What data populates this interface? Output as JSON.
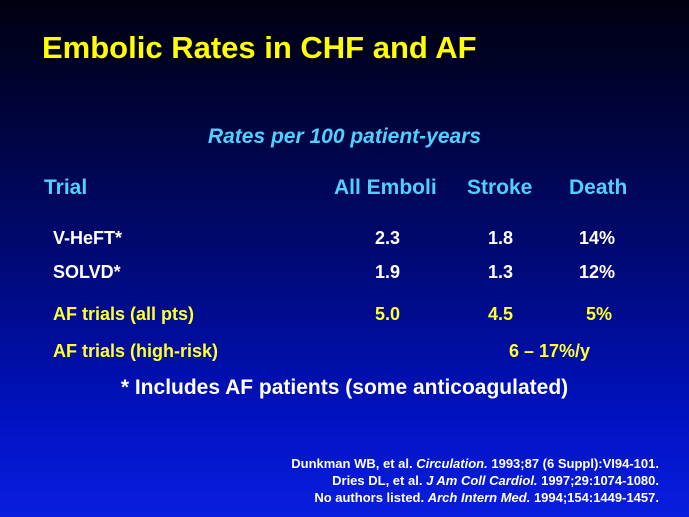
{
  "slide": {
    "title": "Embolic Rates in CHF and AF",
    "subtitle": "Rates per 100 patient-years",
    "columns": [
      "Trial",
      "All Emboli",
      "Stroke",
      "Death"
    ],
    "rows": [
      {
        "trial": "V-HeFT*",
        "emboli": "2.3",
        "stroke": "1.8",
        "death": "14%"
      },
      {
        "trial": "SOLVD*",
        "emboli": "1.9",
        "stroke": "1.3",
        "death": "12%"
      },
      {
        "trial": "AF trials (all pts)",
        "emboli": "5.0",
        "stroke": "4.5",
        "death": "5%"
      }
    ],
    "high_risk": {
      "trial": "AF trials (high-risk)",
      "value": "6 – 17%/y"
    },
    "footnote": "* Includes AF patients (some anticoagulated)",
    "references": [
      {
        "authors": "Dunkman WB, et al.",
        "journal": "Circulation.",
        "detail": "1993;87 (6 Suppl):VI94-101."
      },
      {
        "authors": "Dries DL, et al.",
        "journal": "J Am Coll Cardiol.",
        "detail": "1997;29:1074-1080."
      },
      {
        "authors": "No authors listed.",
        "journal": "Arch Intern Med.",
        "detail": "1994;154:1449-1457."
      }
    ]
  },
  "colors": {
    "title": "#ffff00",
    "header": "#4fd0ff",
    "row_text": "#ffffff",
    "af_text": "#ffff33"
  }
}
